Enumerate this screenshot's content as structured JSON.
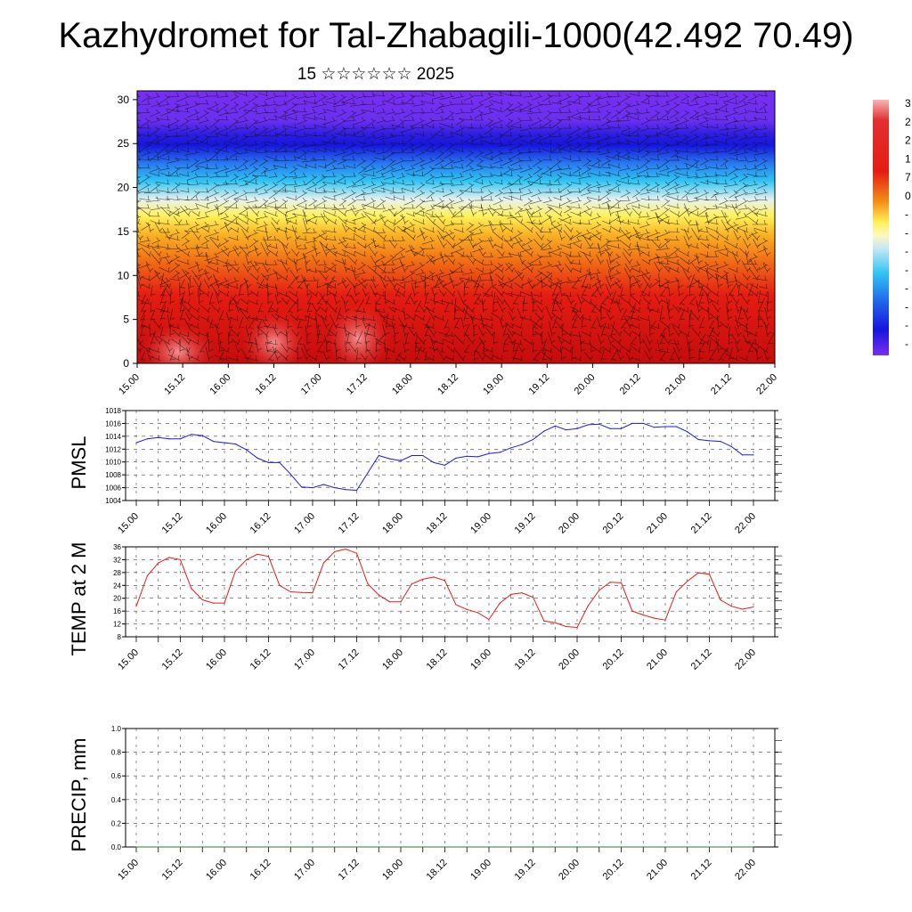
{
  "title": "Kazhydromet for Tal-Zhabagili-1000(42.492 70.49)",
  "subtitle": "15 ☆☆☆☆☆☆ 2025",
  "colors": {
    "pmsl_line": "#1a1ae6",
    "temp_line": "#e61a1a",
    "precip_line": "#2e7d32",
    "grid": "#333333"
  },
  "chart_data": [
    {
      "id": "cross-section",
      "type": "heatmap",
      "title": "",
      "y_ticks": [
        "0",
        "5",
        "10",
        "15",
        "20",
        "25",
        "30"
      ],
      "ylim": [
        0,
        31
      ],
      "x_ticks": [
        "15.00",
        "15.12",
        "16.00",
        "16.12",
        "17.00",
        "17.12",
        "18.00",
        "18.12",
        "19.00",
        "19.12",
        "20.00",
        "20.12",
        "21.00",
        "21.12",
        "22.00"
      ],
      "colorbar_labels": [
        "3",
        "2",
        "2",
        "1",
        "7",
        "0",
        "-",
        "-",
        "-",
        "-",
        "-",
        "-",
        "-",
        "-"
      ]
    },
    {
      "id": "pmsl",
      "type": "line",
      "ylabel": "PMSL",
      "ylim": [
        1004,
        1018
      ],
      "y_ticks": [
        "1004",
        "1006",
        "1008",
        "1010",
        "1012",
        "1014",
        "1016",
        "1018"
      ],
      "x_ticks": [
        "15.00",
        "15.12",
        "16.00",
        "16.12",
        "17.00",
        "17.12",
        "18.00",
        "18.12",
        "19.00",
        "19.12",
        "20.00",
        "20.12",
        "21.00",
        "21.12",
        "22.00"
      ],
      "x": [
        0,
        3,
        6,
        9,
        12,
        15,
        18,
        21,
        24,
        27,
        30,
        33,
        36,
        39,
        42,
        45,
        48,
        51,
        54,
        57,
        60,
        63,
        66,
        69,
        72,
        75,
        78,
        81,
        84,
        87,
        90,
        93,
        96,
        99,
        102,
        105,
        108,
        111,
        114,
        117,
        120,
        123,
        126,
        129,
        132,
        135,
        138,
        141,
        144,
        147,
        150,
        153,
        156,
        159,
        162,
        165,
        168
      ],
      "series": [
        {
          "values": [
            1013.0,
            1013.6,
            1013.8,
            1013.6,
            1013.6,
            1014.3,
            1014.1,
            1013.2,
            1013.0,
            1012.8,
            1011.9,
            1010.6,
            1009.9,
            1009.9,
            1008.1,
            1006.1,
            1006.0,
            1006.5,
            1006.0,
            1005.7,
            1005.6,
            1008.3,
            1011.0,
            1010.5,
            1010.2,
            1011.0,
            1011.0,
            1009.9,
            1009.5,
            1010.6,
            1010.9,
            1010.8,
            1011.3,
            1011.5,
            1012.2,
            1012.7,
            1013.5,
            1014.8,
            1015.6,
            1015.0,
            1015.2,
            1015.8,
            1015.9,
            1015.2,
            1015.2,
            1016.0,
            1016.0,
            1015.4,
            1015.5,
            1015.5,
            1014.7,
            1013.5,
            1013.3,
            1013.2,
            1012.4,
            1011.1,
            1011.1
          ]
        }
      ]
    },
    {
      "id": "temp",
      "type": "line",
      "ylabel": "TEMP at 2 M",
      "ylim": [
        8,
        36
      ],
      "y_ticks": [
        "8",
        "12",
        "16",
        "20",
        "24",
        "28",
        "32",
        "36"
      ],
      "x_ticks": [
        "15.00",
        "15.12",
        "16.00",
        "16.12",
        "17.00",
        "17.12",
        "18.00",
        "18.12",
        "19.00",
        "19.12",
        "20.00",
        "20.12",
        "21.00",
        "21.12",
        "22.00"
      ],
      "x": [
        0,
        3,
        6,
        9,
        12,
        15,
        18,
        21,
        24,
        27,
        30,
        33,
        36,
        39,
        42,
        45,
        48,
        51,
        54,
        57,
        60,
        63,
        66,
        69,
        72,
        75,
        78,
        81,
        84,
        87,
        90,
        93,
        96,
        99,
        102,
        105,
        108,
        111,
        114,
        117,
        120,
        123,
        126,
        129,
        132,
        135,
        138,
        141,
        144,
        147,
        150,
        153,
        156,
        159,
        162,
        165,
        168
      ],
      "series": [
        {
          "values": [
            17.5,
            27.0,
            31.0,
            32.7,
            32.0,
            23.0,
            19.5,
            18.5,
            18.5,
            28.5,
            32.0,
            33.7,
            33.0,
            24.0,
            22.0,
            21.8,
            21.7,
            31.0,
            34.5,
            35.3,
            34.0,
            24.5,
            21.0,
            18.9,
            18.9,
            24.5,
            25.9,
            26.6,
            25.5,
            18.0,
            16.5,
            15.5,
            13.4,
            18.5,
            21.2,
            21.7,
            20.3,
            12.9,
            12.4,
            11.2,
            10.9,
            17.7,
            22.5,
            25.0,
            24.8,
            16.0,
            14.8,
            13.8,
            13.2,
            22.0,
            25.3,
            27.9,
            27.5,
            19.5,
            17.5,
            16.6,
            17.3
          ]
        }
      ]
    },
    {
      "id": "precip",
      "type": "line",
      "ylabel": "PRECIP, mm",
      "ylim": [
        0.0,
        1.0
      ],
      "y_ticks": [
        "0.0",
        "0.2",
        "0.4",
        "0.6",
        "0.8",
        "1.0"
      ],
      "x_ticks": [
        "15.00",
        "15.12",
        "16.00",
        "16.12",
        "17.00",
        "17.12",
        "18.00",
        "18.12",
        "19.00",
        "19.12",
        "20.00",
        "20.12",
        "21.00",
        "21.12",
        "22.00"
      ],
      "x": [
        0,
        168
      ],
      "series": [
        {
          "values": [
            0.0,
            0.0
          ]
        }
      ]
    }
  ]
}
